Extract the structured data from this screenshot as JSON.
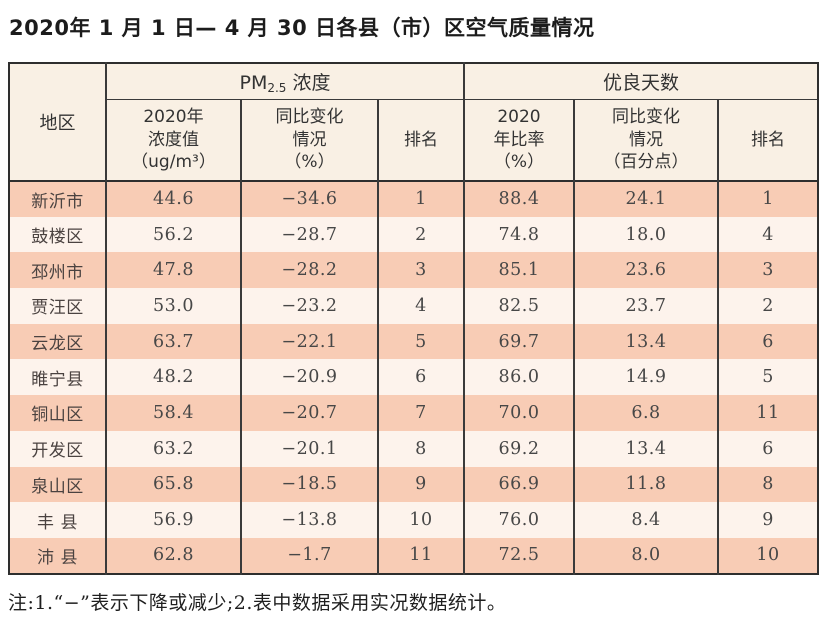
{
  "title": "2020年 1 月 1 日— 4 月 30 日各县（市）区空气质量情况",
  "table": {
    "region_header": "地区",
    "pm_group": {
      "prefix": "PM",
      "sub": "2.5",
      "suffix": " 浓度"
    },
    "good_group": {
      "label": "优良天数"
    },
    "sub_headers": [
      "2020年\n浓度值\n（ug/m³）",
      "同比变化\n情况\n（%）",
      "排名",
      "2020\n年比率\n（%）",
      "同比变化\n情况\n（百分点）",
      "排名"
    ],
    "rows": [
      {
        "region": "新沂市",
        "pm_value": "44.6",
        "pm_change": "−34.6",
        "pm_rank": "1",
        "good_rate": "88.4",
        "good_change": "24.1",
        "good_rank": "1"
      },
      {
        "region": "鼓楼区",
        "pm_value": "56.2",
        "pm_change": "−28.7",
        "pm_rank": "2",
        "good_rate": "74.8",
        "good_change": "18.0",
        "good_rank": "4"
      },
      {
        "region": "邳州市",
        "pm_value": "47.8",
        "pm_change": "−28.2",
        "pm_rank": "3",
        "good_rate": "85.1",
        "good_change": "23.6",
        "good_rank": "3"
      },
      {
        "region": "贾汪区",
        "pm_value": "53.0",
        "pm_change": "−23.2",
        "pm_rank": "4",
        "good_rate": "82.5",
        "good_change": "23.7",
        "good_rank": "2"
      },
      {
        "region": "云龙区",
        "pm_value": "63.7",
        "pm_change": "−22.1",
        "pm_rank": "5",
        "good_rate": "69.7",
        "good_change": "13.4",
        "good_rank": "6"
      },
      {
        "region": "睢宁县",
        "pm_value": "48.2",
        "pm_change": "−20.9",
        "pm_rank": "6",
        "good_rate": "86.0",
        "good_change": "14.9",
        "good_rank": "5"
      },
      {
        "region": "铜山区",
        "pm_value": "58.4",
        "pm_change": "−20.7",
        "pm_rank": "7",
        "good_rate": "70.0",
        "good_change": "6.8",
        "good_rank": "11"
      },
      {
        "region": "开发区",
        "pm_value": "63.2",
        "pm_change": "−20.1",
        "pm_rank": "8",
        "good_rate": "69.2",
        "good_change": "13.4",
        "good_rank": "6"
      },
      {
        "region": "泉山区",
        "pm_value": "65.8",
        "pm_change": "−18.5",
        "pm_rank": "9",
        "good_rate": "66.9",
        "good_change": "11.8",
        "good_rank": "8"
      },
      {
        "region": "丰 县",
        "pm_value": "56.9",
        "pm_change": "−13.8",
        "pm_rank": "10",
        "good_rate": "76.0",
        "good_change": "8.4",
        "good_rank": "9"
      },
      {
        "region": "沛 县",
        "pm_value": "62.8",
        "pm_change": "−1.7",
        "pm_rank": "11",
        "good_rate": "72.5",
        "good_change": "8.0",
        "good_rank": "10"
      }
    ]
  },
  "footnote": "注:1.“−”表示下降或减少;2.表中数据采用实况数据统计。",
  "colors": {
    "row_odd": "#f8ccb5",
    "row_even": "#fdf3ec",
    "header_bg": "#f9f0e4",
    "border": "#2e2e2e"
  }
}
